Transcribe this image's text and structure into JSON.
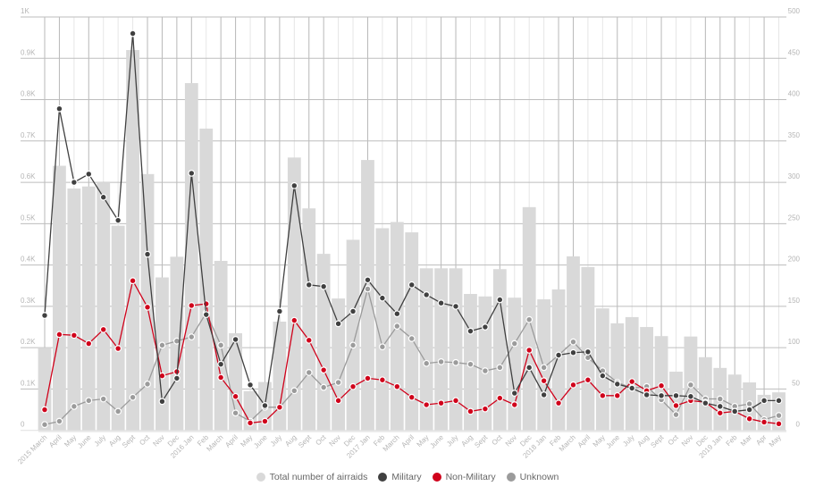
{
  "chart_data": {
    "type": "bar+line",
    "title": "",
    "categories": [
      "2015 March",
      "April",
      "May",
      "June",
      "July",
      "Aug",
      "Sept",
      "Oct",
      "Nov",
      "Dec",
      "2016 Jan",
      "Feb",
      "March",
      "April",
      "May",
      "June",
      "July",
      "Aug",
      "Sept",
      "Oct",
      "Nov",
      "Dec",
      "2017 Jan",
      "Feb",
      "March",
      "April",
      "May",
      "June",
      "July",
      "Aug",
      "Sept",
      "Oct",
      "Nov",
      "Dec",
      "2018 Jan",
      "Feb",
      "March",
      "April",
      "May",
      "June",
      "July",
      "Aug",
      "Sept",
      "Oct",
      "Nov",
      "Dec",
      "2019 Jan",
      "Feb",
      "Mar",
      "Apr",
      "May"
    ],
    "left_axis": {
      "ticks": [
        "0",
        "0.1K",
        "0.2K",
        "0.3K",
        "0.4K",
        "0.5K",
        "0.6K",
        "0.7K",
        "0.8K",
        "0.9K",
        "1K"
      ],
      "range": [
        0,
        1000
      ]
    },
    "right_axis": {
      "ticks": [
        "0",
        "50",
        "100",
        "150",
        "200",
        "250",
        "300",
        "350",
        "400",
        "450",
        "500"
      ],
      "range": [
        0,
        500
      ]
    },
    "grid": true,
    "legend_position": "bottom",
    "series": [
      {
        "name": "Total number of airraids",
        "type": "bar",
        "axis": "left",
        "color": "#d9d9d9",
        "values": [
          200,
          640,
          585,
          590,
          600,
          495,
          920,
          620,
          370,
          420,
          840,
          730,
          410,
          235,
          95,
          117,
          263,
          660,
          537,
          427,
          319,
          461,
          654,
          489,
          504,
          479,
          392,
          392,
          392,
          330,
          324,
          390,
          321,
          540,
          317,
          341,
          421,
          395,
          295,
          259,
          274,
          250,
          228,
          142,
          227,
          177,
          151,
          135,
          116,
          86,
          92
        ]
      },
      {
        "name": "Military",
        "type": "line",
        "axis": "right",
        "color": "#404040",
        "values": [
          139,
          389,
          300,
          310,
          282,
          254,
          480,
          213,
          35,
          63,
          311,
          140,
          80,
          110,
          55,
          30,
          144,
          296,
          176,
          174,
          129,
          144,
          182,
          160,
          141,
          176,
          164,
          154,
          150,
          120,
          125,
          158,
          45,
          76,
          43,
          91,
          94,
          95,
          66,
          56,
          51,
          43,
          42,
          42,
          41,
          33,
          29,
          23,
          25,
          36,
          36
        ]
      },
      {
        "name": "Non-Military",
        "type": "line",
        "axis": "right",
        "color": "#d0021b",
        "values": [
          25,
          116,
          115,
          105,
          122,
          99,
          181,
          149,
          66,
          71,
          151,
          153,
          64,
          41,
          9,
          11,
          28,
          133,
          109,
          73,
          36,
          53,
          63,
          61,
          53,
          40,
          31,
          33,
          36,
          23,
          26,
          39,
          31,
          97,
          60,
          33,
          55,
          61,
          42,
          42,
          59,
          48,
          54,
          30,
          36,
          34,
          21,
          23,
          14,
          10,
          8
        ]
      },
      {
        "name": "Unknown",
        "type": "line",
        "axis": "right",
        "color": "#9b9b9b",
        "values": [
          7,
          11,
          29,
          36,
          38,
          23,
          40,
          56,
          103,
          108,
          113,
          142,
          103,
          21,
          11,
          28,
          28,
          48,
          70,
          52,
          58,
          103,
          171,
          101,
          126,
          111,
          81,
          83,
          82,
          80,
          72,
          76,
          105,
          134,
          76,
          91,
          107,
          88,
          72,
          58,
          51,
          53,
          37,
          19,
          55,
          38,
          38,
          29,
          32,
          13,
          18
        ]
      }
    ]
  }
}
